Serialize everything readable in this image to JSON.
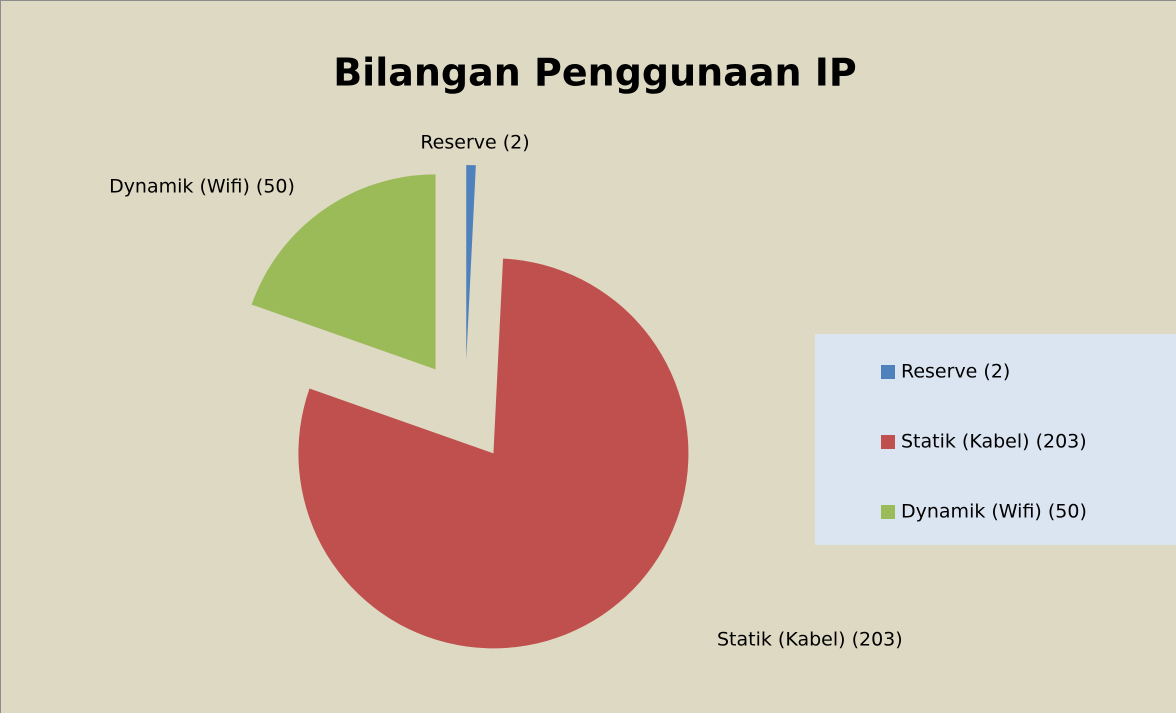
{
  "chart_data": {
    "type": "pie",
    "title": "Bilangan Penggunaan IP",
    "categories": [
      "Reserve (2)",
      "Statik (Kabel) (203)",
      "Dynamik (Wifi) (50)"
    ],
    "values": [
      2,
      203,
      50
    ],
    "colors": [
      "#4f81bd",
      "#c0504d",
      "#9bbb59"
    ],
    "legend": "right"
  }
}
